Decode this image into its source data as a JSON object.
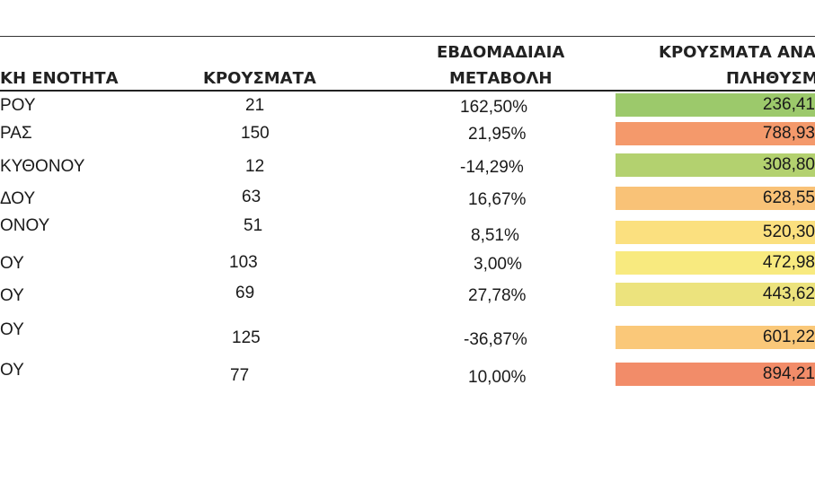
{
  "header": {
    "col1": "ΚΗ ΕΝΟΤΗΤΑ",
    "col2": "ΚΡΟΥΣΜΑΤΑ",
    "col3_line1": "ΕΒΔΟΜΑΔΙΑΙΑ",
    "col3_line2": "ΜΕΤΑΒΟΛΗ",
    "col4_line1": "ΚΡΟΥΣΜΑΤΑ ΑΝΑ",
    "col4_line2": "ΠΛΗΘΥΣΜ"
  },
  "rows": [
    {
      "name": "ΡΟΥ",
      "cases": "21",
      "change": "162,50%",
      "rate": "236,41",
      "color": "#9cc96b"
    },
    {
      "name": "ΡΑΣ",
      "cases": "150",
      "change": "21,95%",
      "rate": "788,93",
      "color": "#f4996b"
    },
    {
      "name": "ΚΥΘΟΝΟΥ",
      "cases": "12",
      "change": "-14,29%",
      "rate": "308,80",
      "color": "#b3d16f"
    },
    {
      "name": "ΔΟΥ",
      "cases": "63",
      "change": "16,67%",
      "rate": "628,55",
      "color": "#f9c277"
    },
    {
      "name": "ΟΝΟΥ",
      "cases": "51",
      "change": "8,51%",
      "rate": "520,30",
      "color": "#fbe07f"
    },
    {
      "name": "ΟΥ",
      "cases": "103",
      "change": "3,00%",
      "rate": "472,98",
      "color": "#f8ea7f"
    },
    {
      "name": "ΟΥ",
      "cases": "69",
      "change": "27,78%",
      "rate": "443,62",
      "color": "#ece37d"
    },
    {
      "name": "ΟΥ",
      "cases": "125",
      "change": "-36,87%",
      "rate": "601,22",
      "color": "#fac879"
    },
    {
      "name": "ΟΥ",
      "cases": "77",
      "change": "10,00%",
      "rate": "894,21",
      "color": "#f28c69"
    }
  ]
}
